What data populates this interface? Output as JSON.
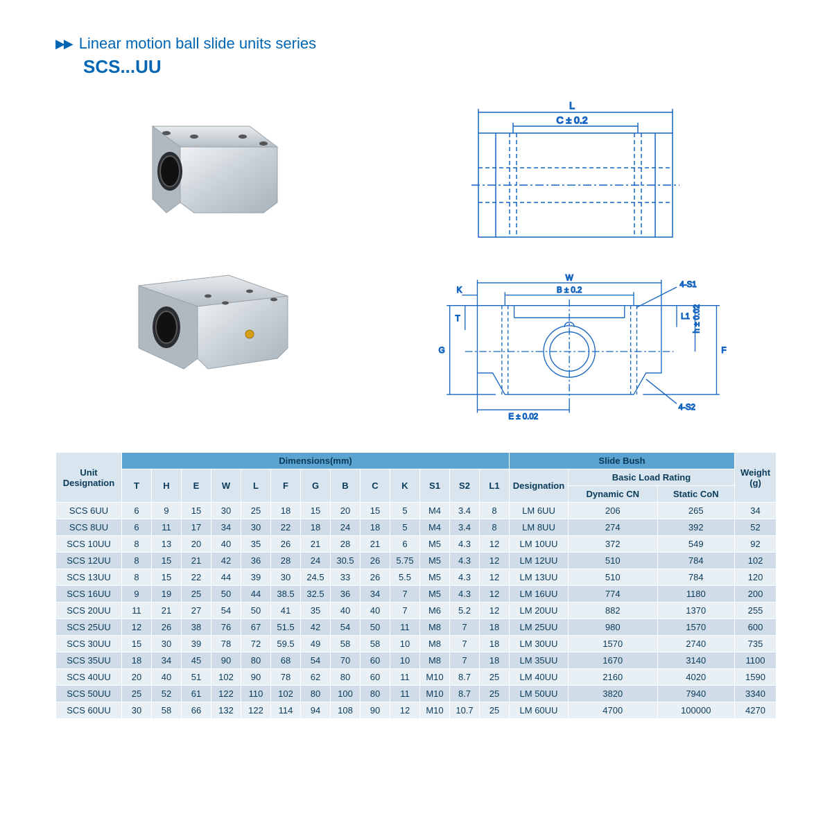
{
  "header": {
    "title": "Linear motion ball slide units series",
    "subtitle": "SCS...UU"
  },
  "drawing": {
    "top_labels": {
      "L": "L",
      "C": "C ± 0.2"
    },
    "front_labels": {
      "W": "W",
      "B": "B ± 0.2",
      "K": "K",
      "T": "T",
      "G": "G",
      "F": "F",
      "h": "h ± 0.02",
      "L1": "L1",
      "E": "E ± 0.02",
      "S1": "4-S1",
      "S2": "4-S2"
    }
  },
  "table": {
    "header_groups": {
      "unit": "Unit Designation",
      "dimensions": "Dimensions(mm)",
      "slidebush": "Slide Bush",
      "weight": "Weight (g)",
      "basicload": "Basic Load Rating",
      "designation2": "Designation",
      "dynamic": "Dynamic CN",
      "static": "Static CoN"
    },
    "dim_cols": [
      "T",
      "H",
      "E",
      "W",
      "L",
      "F",
      "G",
      "B",
      "C",
      "K",
      "S1",
      "S2",
      "L1"
    ],
    "rows": [
      {
        "d": "SCS 6UU",
        "v": [
          6,
          9,
          15,
          30,
          25,
          18,
          15,
          20,
          15,
          5,
          "M4",
          3.4,
          8
        ],
        "des": "LM 6UU",
        "dyn": 206,
        "st": 265,
        "wt": 34
      },
      {
        "d": "SCS 8UU",
        "v": [
          6,
          11,
          17,
          34,
          30,
          22,
          18,
          24,
          18,
          5,
          "M4",
          3.4,
          8
        ],
        "des": "LM 8UU",
        "dyn": 274,
        "st": 392,
        "wt": 52
      },
      {
        "d": "SCS 10UU",
        "v": [
          8,
          13,
          20,
          40,
          35,
          26,
          21,
          28,
          21,
          6,
          "M5",
          4.3,
          12
        ],
        "des": "LM 10UU",
        "dyn": 372,
        "st": 549,
        "wt": 92
      },
      {
        "d": "SCS 12UU",
        "v": [
          8,
          15,
          21,
          42,
          36,
          28,
          24,
          30.5,
          26,
          5.75,
          "M5",
          4.3,
          12
        ],
        "des": "LM 12UU",
        "dyn": 510,
        "st": 784,
        "wt": 102
      },
      {
        "d": "SCS 13UU",
        "v": [
          8,
          15,
          22,
          44,
          39,
          30,
          24.5,
          33,
          26,
          5.5,
          "M5",
          4.3,
          12
        ],
        "des": "LM 13UU",
        "dyn": 510,
        "st": 784,
        "wt": 120
      },
      {
        "d": "SCS 16UU",
        "v": [
          9,
          19,
          25,
          50,
          44,
          38.5,
          32.5,
          36,
          34,
          7,
          "M5",
          4.3,
          12
        ],
        "des": "LM 16UU",
        "dyn": 774,
        "st": 1180,
        "wt": 200
      },
      {
        "d": "SCS 20UU",
        "v": [
          11,
          21,
          27,
          54,
          50,
          41,
          35,
          40,
          40,
          7,
          "M6",
          5.2,
          12
        ],
        "des": "LM 20UU",
        "dyn": 882,
        "st": 1370,
        "wt": 255
      },
      {
        "d": "SCS 25UU",
        "v": [
          12,
          26,
          38,
          76,
          67,
          51.5,
          42,
          54,
          50,
          11,
          "M8",
          7,
          18
        ],
        "des": "LM 25UU",
        "dyn": 980,
        "st": 1570,
        "wt": 600
      },
      {
        "d": "SCS 30UU",
        "v": [
          15,
          30,
          39,
          78,
          72,
          59.5,
          49,
          58,
          58,
          10,
          "M8",
          7,
          18
        ],
        "des": "LM 30UU",
        "dyn": 1570,
        "st": 2740,
        "wt": 735
      },
      {
        "d": "SCS 35UU",
        "v": [
          18,
          34,
          45,
          90,
          80,
          68,
          54,
          70,
          60,
          10,
          "M8",
          7,
          18
        ],
        "des": "LM 35UU",
        "dyn": 1670,
        "st": 3140,
        "wt": 1100
      },
      {
        "d": "SCS 40UU",
        "v": [
          20,
          40,
          51,
          102,
          90,
          78,
          62,
          80,
          60,
          11,
          "M10",
          8.7,
          25
        ],
        "des": "LM 40UU",
        "dyn": 2160,
        "st": 4020,
        "wt": 1590
      },
      {
        "d": "SCS 50UU",
        "v": [
          25,
          52,
          61,
          122,
          110,
          102,
          80,
          100,
          80,
          11,
          "M10",
          8.7,
          25
        ],
        "des": "LM 50UU",
        "dyn": 3820,
        "st": 7940,
        "wt": 3340
      },
      {
        "d": "SCS 60UU",
        "v": [
          30,
          58,
          66,
          132,
          122,
          114,
          94,
          108,
          90,
          12,
          "M10",
          10.7,
          25
        ],
        "des": "LM 60UU",
        "dyn": 4700,
        "st": "100000",
        "wt": 4270
      }
    ]
  },
  "colors": {
    "header_bg": "#5ba3d0",
    "light_header_bg": "#d9e6f0",
    "row_odd": "#e8eff5",
    "row_even": "#d0dde8",
    "ink": "#0a3a5a",
    "accent": "#0066b3",
    "drawing_line": "#1565c0"
  }
}
